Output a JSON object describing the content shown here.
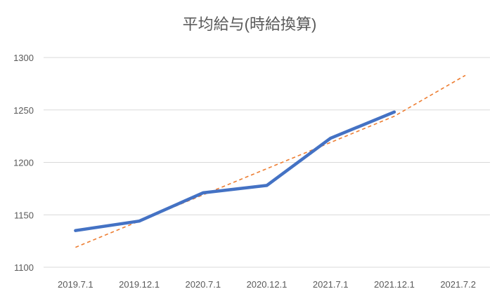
{
  "chart_data": {
    "type": "line",
    "title": "平均給与(時給換算)",
    "xlabel": "",
    "ylabel": "",
    "categories": [
      "2019.7.1",
      "2019.12.1",
      "2020.7.1",
      "2020.12.1",
      "2021.7.1",
      "2021.12.1",
      "2021.7.2"
    ],
    "ylim": [
      1100,
      1300
    ],
    "yticks": [
      1100,
      1150,
      1200,
      1250,
      1300
    ],
    "grid": true,
    "legend": "none",
    "series": [
      {
        "values": [
          1135,
          1144,
          1171,
          1178,
          1223,
          1248,
          null
        ],
        "color": "#4472c4",
        "style": "solid"
      },
      {
        "values": [
          1119,
          1144,
          1169,
          1194,
          1219,
          1244,
          1279
        ],
        "color": "#ed7d31",
        "style": "dashed",
        "trendline": true
      }
    ]
  }
}
